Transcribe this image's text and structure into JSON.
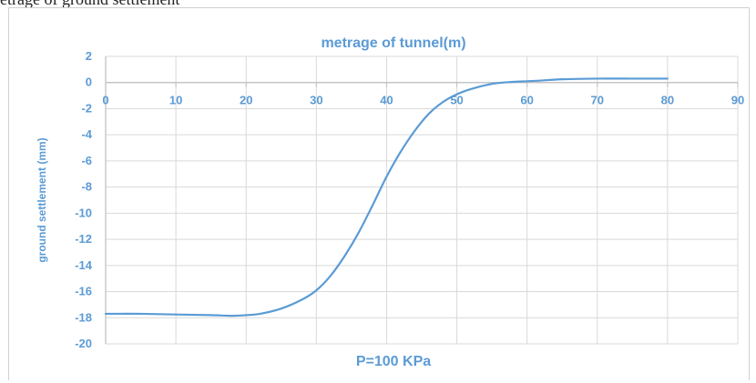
{
  "header_fragment": "etrage of ground settlement",
  "chart_data": {
    "type": "line",
    "title": "metrage of tunnel(m)",
    "xlabel": "P=100 KPa",
    "ylabel": "ground settlement (mm)",
    "xlim": [
      0,
      90
    ],
    "ylim": [
      -20,
      2
    ],
    "x_ticks": [
      0,
      10,
      20,
      30,
      40,
      50,
      60,
      70,
      80,
      90
    ],
    "y_ticks": [
      2,
      0,
      -2,
      -4,
      -6,
      -8,
      -10,
      -12,
      -14,
      -16,
      -18,
      -20
    ],
    "grid": true,
    "x_axis_position": "top (at y=0)",
    "color": "#5b9bd5",
    "series": [
      {
        "x": [
          0,
          5,
          10,
          15,
          18,
          20,
          22,
          25,
          28,
          30,
          32,
          34,
          36,
          38,
          40,
          42,
          44,
          46,
          48,
          50,
          52,
          55,
          58,
          60,
          62,
          65,
          70,
          75,
          80
        ],
        "values": [
          -17.7,
          -17.7,
          -17.75,
          -17.8,
          -17.85,
          -17.8,
          -17.7,
          -17.3,
          -16.6,
          -15.9,
          -14.8,
          -13.3,
          -11.5,
          -9.4,
          -7.2,
          -5.3,
          -3.7,
          -2.4,
          -1.5,
          -0.9,
          -0.5,
          -0.1,
          0.05,
          0.1,
          0.15,
          0.25,
          0.3,
          0.3,
          0.3
        ]
      }
    ]
  }
}
